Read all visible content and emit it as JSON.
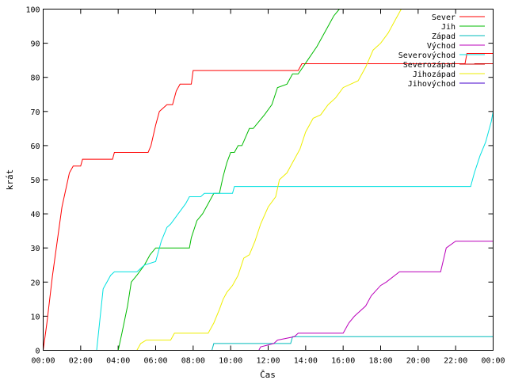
{
  "chart_data": {
    "type": "line",
    "xlabel": "Čas",
    "ylabel": "krát",
    "xlim": [
      0,
      24
    ],
    "ylim": [
      0,
      100
    ],
    "x_ticks": [
      "00:00",
      "02:00",
      "04:00",
      "06:00",
      "08:00",
      "10:00",
      "12:00",
      "14:00",
      "16:00",
      "18:00",
      "20:00",
      "22:00",
      "00:00"
    ],
    "y_ticks": [
      "0",
      "10",
      "20",
      "30",
      "40",
      "50",
      "60",
      "70",
      "80",
      "90",
      "100"
    ],
    "grid": false,
    "legend_position": "top-right",
    "series": [
      {
        "name": "Sever",
        "color": "#ff0000",
        "x": [
          0,
          0.2,
          0.5,
          1.0,
          1.4,
          1.6,
          2.0,
          2.1,
          3.7,
          3.8,
          4.7,
          5.6,
          5.75,
          6.0,
          6.2,
          6.6,
          6.9,
          7.1,
          7.3,
          7.9,
          8.0,
          13.6,
          13.8,
          22.5,
          22.6,
          24
        ],
        "y": [
          0,
          8,
          22,
          42,
          52,
          54,
          54,
          56,
          56,
          58,
          58,
          58,
          60,
          66,
          70,
          72,
          72,
          76,
          78,
          78,
          82,
          82,
          84,
          84,
          87,
          87
        ]
      },
      {
        "name": "Jih",
        "color": "#00bb00",
        "x": [
          0,
          4.0,
          4.2,
          4.5,
          4.7,
          5.0,
          5.4,
          5.7,
          6.0,
          6.3,
          7.8,
          7.9,
          8.2,
          8.5,
          8.8,
          9.1,
          9.4,
          9.6,
          9.8,
          10.0,
          10.2,
          10.4,
          10.6,
          11.0,
          11.2,
          11.5,
          11.8,
          12.2,
          12.5,
          13.0,
          13.3,
          13.6,
          14.1,
          14.6,
          14.9,
          15.2,
          15.5,
          15.8
        ],
        "y": [
          0,
          0,
          5,
          13,
          20,
          22,
          25,
          28,
          30,
          30,
          30,
          33,
          38,
          40,
          43,
          46,
          46,
          51,
          55,
          58,
          58,
          60,
          60,
          65,
          65,
          67,
          69,
          72,
          77,
          78,
          81,
          81,
          85,
          89,
          92,
          95,
          98,
          100
        ]
      },
      {
        "name": "Západ",
        "color": "#00bbbb",
        "x": [
          0,
          9.0,
          9.1,
          13.2,
          13.3,
          24
        ],
        "y": [
          0,
          0,
          2,
          2,
          4,
          4
        ]
      },
      {
        "name": "Východ",
        "color": "#bb00bb",
        "x": [
          0,
          11.5,
          11.6,
          12.3,
          12.5,
          13.4,
          13.6,
          16.0,
          16.3,
          16.6,
          17.2,
          17.5,
          18.0,
          18.3,
          19.0,
          21.2,
          21.5,
          22.0,
          24
        ],
        "y": [
          0,
          0,
          1,
          2,
          3,
          4,
          5,
          5,
          8,
          10,
          13,
          16,
          19,
          20,
          23,
          23,
          30,
          32,
          32
        ]
      },
      {
        "name": "Severovýchod",
        "color": "#00e0e0",
        "x": [
          0,
          2.85,
          3.2,
          3.6,
          3.8,
          5.0,
          5.4,
          6.0,
          6.3,
          6.6,
          6.8,
          7.2,
          7.6,
          7.8,
          8.4,
          8.6,
          10.1,
          10.2,
          22.8,
          23.0,
          23.3,
          23.6,
          23.9,
          24
        ],
        "y": [
          0,
          0,
          18,
          22,
          23,
          23,
          25,
          26,
          32,
          36,
          37,
          40,
          43,
          45,
          45,
          46,
          46,
          48,
          48,
          52,
          57,
          61,
          67,
          70
        ]
      },
      {
        "name": "Severozápad",
        "color": "#cc0000",
        "x": [
          23.0,
          24
        ],
        "y": [
          84,
          84
        ]
      },
      {
        "name": "Jihozápad",
        "color": "#eeee00",
        "x": [
          0,
          5.0,
          5.2,
          5.5,
          6.8,
          7.0,
          8.8,
          9.1,
          9.4,
          9.6,
          9.8,
          10.1,
          10.4,
          10.7,
          11.0,
          11.3,
          11.6,
          12.0,
          12.4,
          12.6,
          13.0,
          13.3,
          13.7,
          14.0,
          14.4,
          14.8,
          15.2,
          15.6,
          16.0,
          16.4,
          16.8,
          17.2,
          17.6,
          18.0,
          18.4,
          18.8,
          19.1
        ],
        "y": [
          0,
          0,
          2,
          3,
          3,
          5,
          5,
          8,
          12,
          15,
          17,
          19,
          22,
          27,
          28,
          32,
          37,
          42,
          45,
          50,
          52,
          55,
          59,
          64,
          68,
          69,
          72,
          74,
          77,
          78,
          79,
          83,
          88,
          90,
          93,
          97,
          100
        ]
      },
      {
        "name": "Jihovýchod",
        "color": "#4400cc",
        "x": [],
        "y": []
      }
    ]
  }
}
